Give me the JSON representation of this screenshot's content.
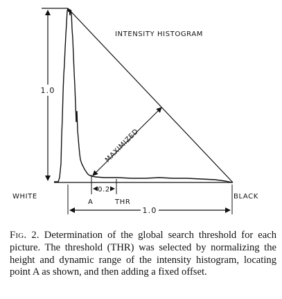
{
  "figure": {
    "title": "INTENSITY HISTOGRAM",
    "label_maximized": "MAXIMIZED",
    "label_white": "WHITE",
    "label_black": "BLACK",
    "label_point_a": "A",
    "label_thr": "THR",
    "label_offset": "0.2",
    "label_height": "1.0",
    "label_range": "1.0"
  },
  "caption": {
    "fig_prefix": "F",
    "fig_small": "IG",
    "fig_number": ". 2.",
    "text": "Determination of the global search threshold for each picture. The threshold (THR) was selected by normalizing the height and dynamic range of the intensity histogram, locating point A as shown, and then adding a fixed offset."
  }
}
